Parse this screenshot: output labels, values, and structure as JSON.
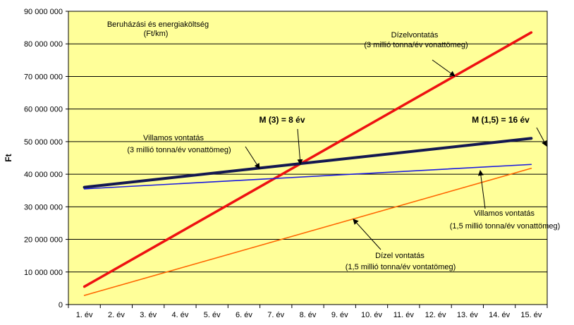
{
  "chart_data": {
    "type": "line",
    "ylabel": "Ft",
    "ylim": [
      0,
      90000000
    ],
    "y_ticks": [
      {
        "value": 0,
        "label": "0"
      },
      {
        "value": 10000000,
        "label": "10 000 000"
      },
      {
        "value": 20000000,
        "label": "20 000 000"
      },
      {
        "value": 30000000,
        "label": "30 000 000"
      },
      {
        "value": 40000000,
        "label": "40 000 000"
      },
      {
        "value": 50000000,
        "label": "50 000 000"
      },
      {
        "value": 60000000,
        "label": "60 000 000"
      },
      {
        "value": 70000000,
        "label": "70 000 000"
      },
      {
        "value": 80000000,
        "label": "80 000 000"
      },
      {
        "value": 90000000,
        "label": "90 000 000"
      }
    ],
    "categories": [
      "1. év",
      "2. év",
      "3. év",
      "4. év",
      "5. év",
      "6. év",
      "7. év",
      "8. év",
      "9. év",
      "10. év",
      "11. év",
      "12. év",
      "13. év",
      "14. év",
      "15. év"
    ],
    "x_range": [
      1,
      15
    ],
    "grid": "horizontal",
    "colors": {
      "plot_bg": "#ffff99",
      "grid": "#000000"
    },
    "series": [
      {
        "key": "dizel3",
        "color": "#ee1111",
        "width": 3.5,
        "start": 5500000,
        "end": 83500000
      },
      {
        "key": "villamos3",
        "color": "#141850",
        "width": 4,
        "start": 36000000,
        "end": 51000000
      },
      {
        "key": "villamos15",
        "color": "#1a1ae0",
        "width": 1.6,
        "start": 35500000,
        "end": 43000000
      },
      {
        "key": "dizel15",
        "color": "#ff6600",
        "width": 1.6,
        "start": 2800000,
        "end": 41800000
      }
    ],
    "annotations": {
      "title_line1": "Beruházási és energiaköltség",
      "title_line2": "(Ft/km)",
      "dizel3_line1": "Dízelvontatás",
      "dizel3_line2": "(3 millió tonna/év vonattömeg)",
      "villamos3_line1": "Villamos vontatás",
      "villamos3_line2": "(3 millió tonna/év vonattömeg)",
      "m3": "M (3) = 8 év",
      "m15": "M (1,5) = 16 év",
      "villamos15_line1": "Villamos vontatás",
      "villamos15_line2": "(1,5 millió tonna/év vonattömeg)",
      "dizel15_line1": "Dízel vontatás",
      "dizel15_line2": "(1,5 millió tonna/év vontatömeg)"
    }
  }
}
